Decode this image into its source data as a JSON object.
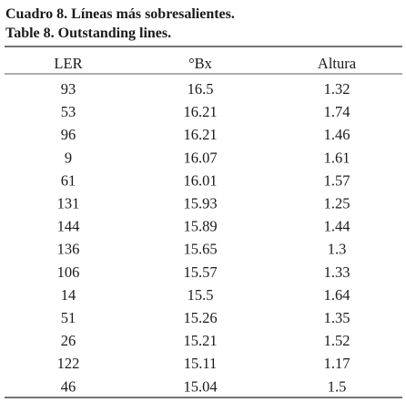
{
  "header": {
    "title_es": "Cuadro 8. Líneas más sobresalientes.",
    "title_en": "Table 8. Outstanding lines."
  },
  "table": {
    "columns": [
      "LER",
      "°Bx",
      "Altura"
    ],
    "rows": [
      [
        "93",
        "16.5",
        "1.32"
      ],
      [
        "53",
        "16.21",
        "1.74"
      ],
      [
        "96",
        "16.21",
        "1.46"
      ],
      [
        "9",
        "16.07",
        "1.61"
      ],
      [
        "61",
        "16.01",
        "1.57"
      ],
      [
        "131",
        "15.93",
        "1.25"
      ],
      [
        "144",
        "15.89",
        "1.44"
      ],
      [
        "136",
        "15.65",
        "1.3"
      ],
      [
        "106",
        "15.57",
        "1.33"
      ],
      [
        "14",
        "15.5",
        "1.64"
      ],
      [
        "51",
        "15.26",
        "1.35"
      ],
      [
        "26",
        "15.21",
        "1.52"
      ],
      [
        "122",
        "15.11",
        "1.17"
      ],
      [
        "46",
        "15.04",
        "1.5"
      ]
    ]
  }
}
